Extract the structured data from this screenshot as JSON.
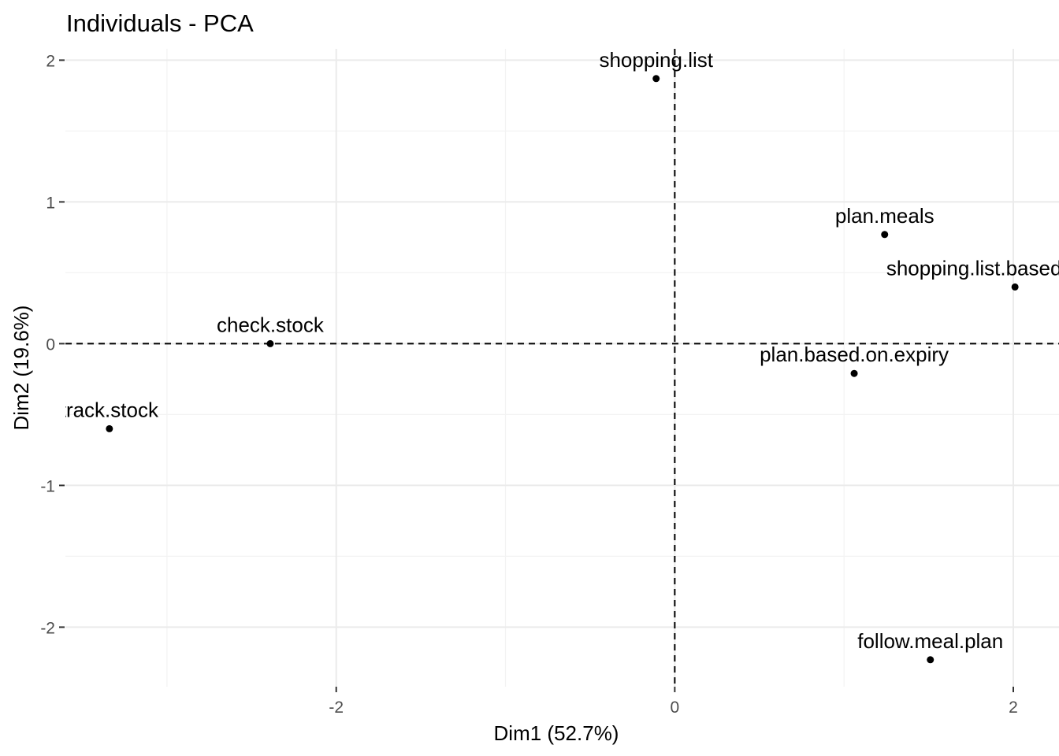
{
  "chart_data": {
    "type": "scatter",
    "title": "Individuals - PCA",
    "xlabel": "Dim1 (52.7%)",
    "ylabel": "Dim2 (19.6%)",
    "xlim": [
      -3.6,
      2.27
    ],
    "ylim": [
      -2.42,
      2.08
    ],
    "x_ticks": [
      -2,
      0,
      2
    ],
    "y_ticks": [
      -2,
      -1,
      0,
      1,
      2
    ],
    "x_tick_labels": [
      "-2",
      "0",
      "2"
    ],
    "y_tick_labels": [
      "-2",
      "-1",
      "0",
      "1",
      "2"
    ],
    "reference_lines": {
      "x": 0,
      "y": 0,
      "style": "dashed"
    },
    "grid": true,
    "points": [
      {
        "label": "shopping.list",
        "x": -0.11,
        "y": 1.87
      },
      {
        "label": "plan.meals",
        "x": 1.24,
        "y": 0.77
      },
      {
        "label": "shopping.list.based.on.stock",
        "x": 2.01,
        "y": 0.4
      },
      {
        "label": "check.stock",
        "x": -2.39,
        "y": 0.0
      },
      {
        "label": "plan.based.on.expiry",
        "x": 1.06,
        "y": -0.21
      },
      {
        "label": "track.stock",
        "x": -3.34,
        "y": -0.6
      },
      {
        "label": "follow.meal.plan",
        "x": 1.51,
        "y": -2.23
      }
    ]
  }
}
